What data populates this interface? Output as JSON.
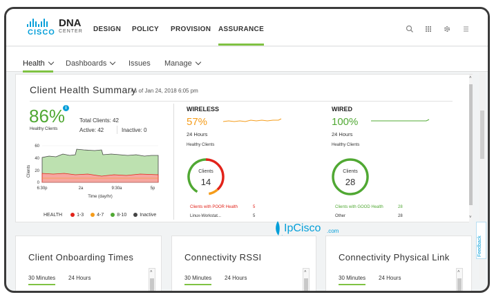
{
  "header": {
    "brand": "CISCO",
    "product": "DNA",
    "product_sub": "CENTER",
    "nav": [
      "DESIGN",
      "POLICY",
      "PROVISION",
      "ASSURANCE"
    ],
    "icons": [
      "search-icon",
      "apps-grid-icon",
      "gear-icon",
      "menu-icon"
    ]
  },
  "subnav": {
    "items": [
      "Health",
      "Dashboards",
      "Issues",
      "Manage"
    ]
  },
  "summary": {
    "title": "Client Health Summary",
    "as_of": "As of Jan 24, 2018 6:05 pm",
    "healthy_pct": "86%",
    "healthy_label": "Healthy Clients",
    "total_clients": "Total Clients: 42",
    "active": "Active: 42",
    "inactive": "Inactive: 0",
    "chart": {
      "ylabel": "Clients",
      "xlabel": "Time (day/hr)",
      "yticks": [
        "60",
        "40",
        "20",
        "0"
      ],
      "xticks": [
        "6:30p",
        "2a",
        "9:30a",
        "5p"
      ]
    },
    "legend": {
      "label": "HEALTH",
      "items": [
        {
          "text": "1-3",
          "color": "#e2231a"
        },
        {
          "text": "4-7",
          "color": "#f59c1a"
        },
        {
          "text": "8-10",
          "color": "#50a833"
        },
        {
          "text": "Inactive",
          "color": "#444444"
        }
      ]
    },
    "wireless": {
      "heading": "WIRELESS",
      "pct": "57%",
      "period": "24 Hours",
      "healthy_label": "Healthy Clients",
      "donut_label": "Clients",
      "donut_value": "14",
      "row1_label": "Clients with POOR Health",
      "row1_value": "5",
      "row2_label": "Linux-Workstat...",
      "row2_value": "5",
      "pct_color": "#f59c1a"
    },
    "wired": {
      "heading": "WIRED",
      "pct": "100%",
      "period": "24 Hours",
      "healthy_label": "Healthy Clients",
      "donut_label": "Clients",
      "donut_value": "28",
      "row1_label": "Clients with GOOD Health",
      "row1_value": "28",
      "row2_label": "Other",
      "row2_value": "28",
      "pct_color": "#50a833"
    }
  },
  "watermark": {
    "text": "IpCisco",
    "suffix": ".com"
  },
  "feedback": "Feedback",
  "bottom_cards": [
    {
      "title": "Client Onboarding Times",
      "tab_active": "30 Minutes",
      "tab_other": "24 Hours"
    },
    {
      "title": "Connectivity RSSI",
      "tab_active": "30 Minutes",
      "tab_other": "24 Hours"
    },
    {
      "title": "Connectivity Physical Link",
      "tab_active": "30 Minutes",
      "tab_other": "24 Hours"
    }
  ],
  "colors": {
    "accent_green": "#7fc242",
    "cisco_blue": "#049fd9",
    "poor_red": "#e2231a",
    "fair_orange": "#f59c1a",
    "good_green": "#50a833"
  }
}
